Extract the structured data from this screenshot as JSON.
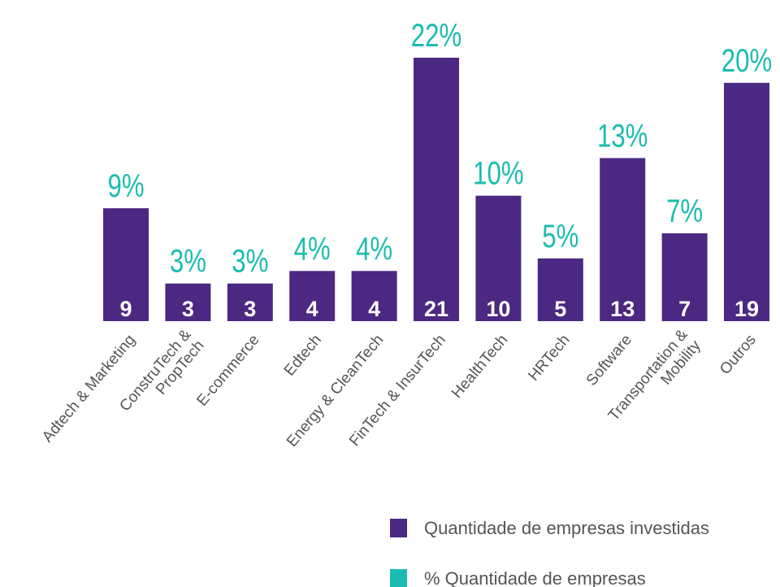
{
  "chart_data": {
    "type": "bar",
    "categories": [
      "Adtech & Marketing",
      "ConstruTech &\nPropTech",
      "E-commerce",
      "Edtech",
      "Energy & CleanTech",
      "FinTech & InsurTech",
      "HealthTech",
      "HRTech",
      "Software",
      "Transportation &\nMobility",
      "Outros"
    ],
    "series": [
      {
        "name": "Quantidade de empresas investidas",
        "color": "#4b2882",
        "values": [
          9,
          3,
          3,
          4,
          4,
          21,
          10,
          5,
          13,
          7,
          19
        ]
      },
      {
        "name": "% Quantidade de empresas",
        "color": "#1bbcb0",
        "values": [
          9,
          3,
          3,
          4,
          4,
          22,
          10,
          5,
          13,
          7,
          20
        ],
        "value_labels": [
          "9%",
          "3%",
          "3%",
          "4%",
          "4%",
          "22%",
          "10%",
          "5%",
          "13%",
          "7%",
          "20%"
        ]
      }
    ],
    "legend": "bottom-right"
  }
}
